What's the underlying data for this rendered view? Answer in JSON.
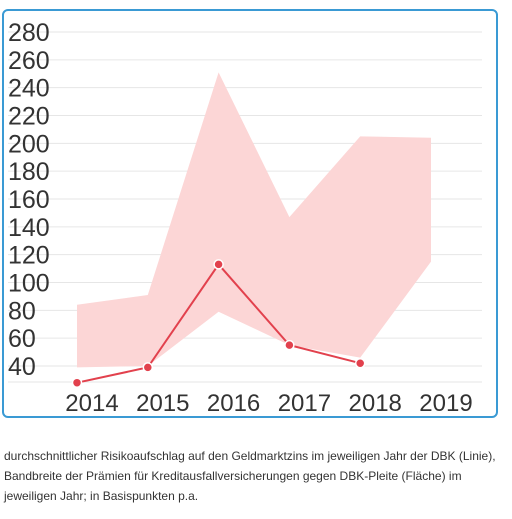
{
  "chart_data": {
    "type": "area",
    "categories": [
      "2014",
      "2015",
      "2016",
      "2017",
      "2018",
      "2019"
    ],
    "y_ticks": [
      "280",
      "260",
      "240",
      "220",
      "200",
      "180",
      "160",
      "140",
      "120",
      "100",
      "80",
      "60",
      "40"
    ],
    "ylim": [
      20,
      280
    ],
    "grid": true,
    "band": {
      "upper": [
        84,
        91,
        251,
        147,
        205,
        204
      ],
      "lower": [
        39,
        40,
        79,
        55,
        46,
        115
      ]
    },
    "line": {
      "values": [
        28,
        39,
        113,
        55,
        42,
        null
      ]
    },
    "colors": {
      "band": "#fcd6d6",
      "line": "#e2414d",
      "grid": "#e6e6e6",
      "frame": "#3a9ad4",
      "tick": "#333333"
    }
  },
  "caption": "durchschnittlicher Risikoaufschlag auf den Geldmarktzins im jeweiligen Jahr der DBK (Linie), Bandbreite der Prämien für Kreditausfallversicherungen gegen DBK-Pleite (Fläche) im jeweiligen Jahr; in Basispunkten p.a."
}
